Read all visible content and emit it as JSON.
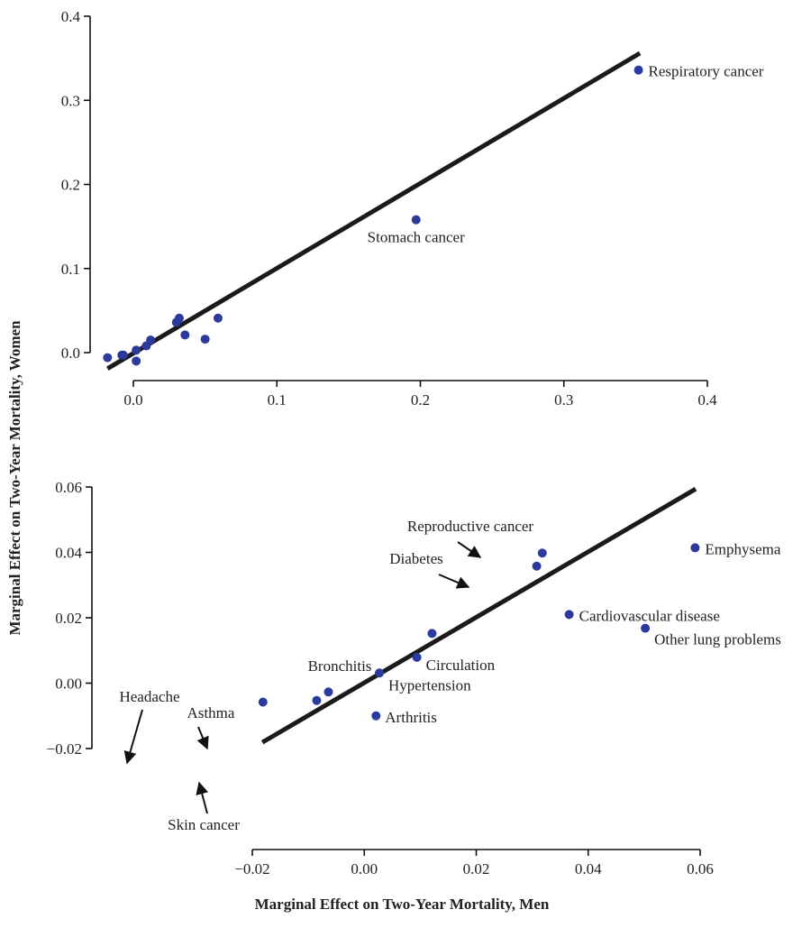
{
  "ylabel": "Marginal Effect on Two-Year Mortality, Women",
  "xlabel": "Marginal Effect on Two-Year Mortality, Men",
  "colors": {
    "point": "#2b3a9c",
    "line": "#1a1a1a"
  },
  "chart_data": [
    {
      "type": "scatter",
      "title": "",
      "xlim": [
        -0.03,
        0.4
      ],
      "ylim": [
        -0.03,
        0.41
      ],
      "xticks": [
        0.0,
        0.1,
        0.2,
        0.3,
        0.4
      ],
      "xtick_labels": [
        "0.0",
        "0.1",
        "0.2",
        "0.3",
        "0.4"
      ],
      "yticks": [
        0.0,
        0.1,
        0.2,
        0.3,
        0.4
      ],
      "ytick_labels": [
        "0.0",
        "0.1",
        "0.2",
        "0.3",
        "0.4"
      ],
      "fit_line": [
        [
          -0.018,
          -0.019
        ],
        [
          0.353,
          0.356
        ]
      ],
      "points": [
        {
          "x": 0.352,
          "y": 0.336,
          "label": "Respiratory cancer"
        },
        {
          "x": 0.197,
          "y": 0.158,
          "label": "Stomach cancer"
        },
        {
          "x": -0.018,
          "y": -0.006,
          "label": ""
        },
        {
          "x": -0.008,
          "y": -0.003,
          "label": ""
        },
        {
          "x": -0.007,
          "y": -0.003,
          "label": ""
        },
        {
          "x": 0.002,
          "y": -0.01,
          "label": ""
        },
        {
          "x": 0.002,
          "y": 0.003,
          "label": ""
        },
        {
          "x": 0.009,
          "y": 0.008,
          "label": ""
        },
        {
          "x": 0.012,
          "y": 0.015,
          "label": ""
        },
        {
          "x": 0.03,
          "y": 0.036,
          "label": ""
        },
        {
          "x": 0.032,
          "y": 0.041,
          "label": ""
        },
        {
          "x": 0.036,
          "y": 0.021,
          "label": ""
        },
        {
          "x": 0.05,
          "y": 0.016,
          "label": ""
        },
        {
          "x": 0.059,
          "y": 0.041,
          "label": ""
        }
      ]
    },
    {
      "type": "scatter",
      "title": "",
      "xlim": [
        -0.022,
        0.06
      ],
      "ylim": [
        -0.022,
        0.061
      ],
      "xticks": [
        -0.02,
        0.0,
        0.02,
        0.04,
        0.06
      ],
      "xtick_labels": [
        "−0.02",
        "0.00",
        "0.02",
        "0.04",
        "0.06"
      ],
      "yticks": [
        -0.02,
        0.0,
        0.02,
        0.04,
        0.06
      ],
      "ytick_labels": [
        "−0.02",
        "0.00",
        "0.02",
        "0.04",
        "0.06"
      ],
      "fit_line": [
        [
          -0.0182,
          -0.0181
        ],
        [
          0.0592,
          0.0594
        ]
      ],
      "points": [
        {
          "x": 0.0591,
          "y": 0.0414,
          "label": "Emphysema"
        },
        {
          "x": 0.0318,
          "y": 0.0398,
          "label": "Reproductive cancer"
        },
        {
          "x": 0.0308,
          "y": 0.0358,
          "label": "Diabetes"
        },
        {
          "x": 0.0366,
          "y": 0.021,
          "label": "Cardiovascular disease"
        },
        {
          "x": 0.0502,
          "y": 0.0168,
          "label": "Other lung problems"
        },
        {
          "x": 0.0121,
          "y": 0.0152,
          "label": "Bronchitis"
        },
        {
          "x": 0.0094,
          "y": 0.0079,
          "label": "Circulation"
        },
        {
          "x": 0.0027,
          "y": 0.0031,
          "label": "Hypertension"
        },
        {
          "x": 0.0021,
          "y": -0.01,
          "label": "Arthritis"
        },
        {
          "x": -0.0181,
          "y": -0.0058,
          "label": "Headache"
        },
        {
          "x": -0.0064,
          "y": -0.0027,
          "label": "Asthma"
        },
        {
          "x": -0.0085,
          "y": -0.0053,
          "label": "Skin cancer"
        }
      ]
    }
  ]
}
